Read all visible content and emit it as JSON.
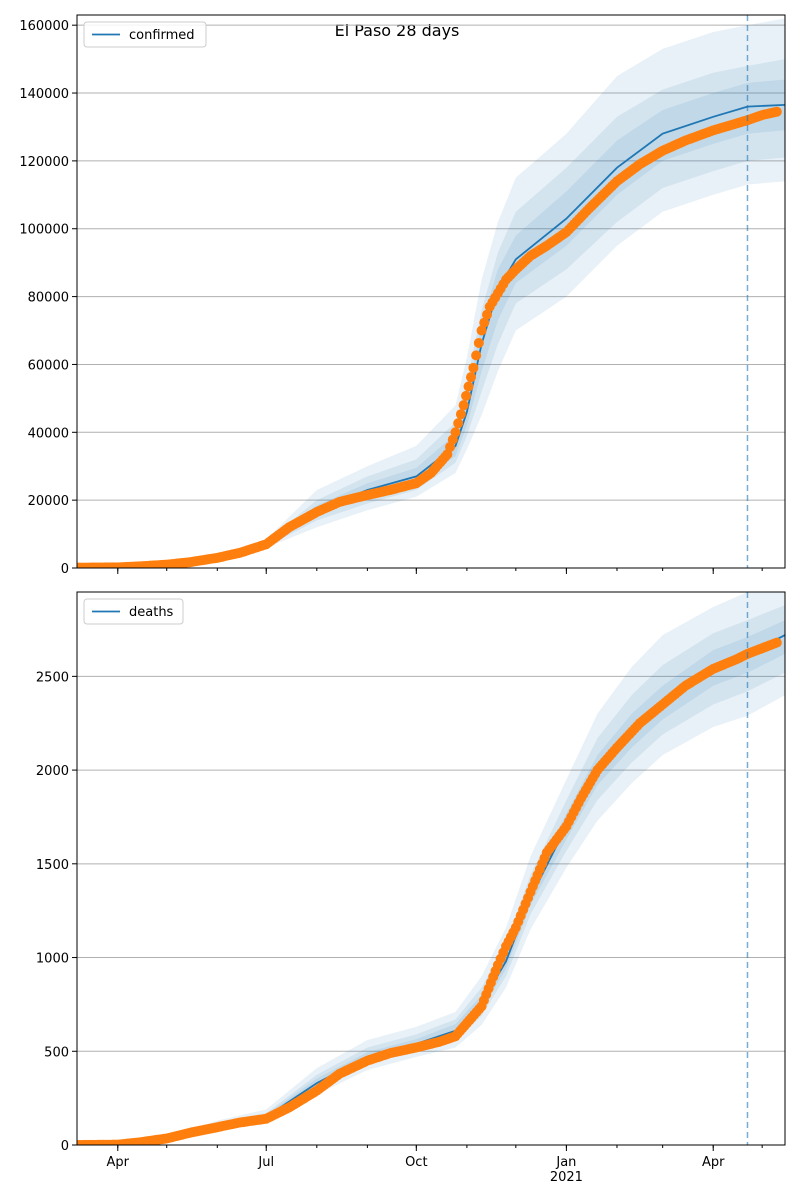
{
  "figure": {
    "title": "El Paso 28 days"
  },
  "colors": {
    "model_line": "#1f77b4",
    "band_fill": "#1f77b4",
    "observed": "#ff7f0e",
    "grid": "#b0b0b0",
    "vline": "#1f77b4"
  },
  "chart_data": [
    {
      "type": "line",
      "id": "confirmed",
      "legend": {
        "entries": [
          "confirmed"
        ],
        "placement": "top-left"
      },
      "x_axis": {
        "type": "date",
        "range": [
          "2020-03-07",
          "2021-05-15"
        ],
        "ticks": [
          {
            "date": "2020-04-01",
            "label": "Apr"
          },
          {
            "date": "2020-07-01",
            "label": "Jul"
          },
          {
            "date": "2020-10-01",
            "label": "Oct"
          },
          {
            "date": "2021-01-01",
            "label": "Jan"
          },
          {
            "date": "2021-04-01",
            "label": "Apr"
          }
        ],
        "year_label": "2021"
      },
      "y_axis": {
        "range": [
          0,
          163000
        ],
        "ticks": [
          0,
          20000,
          40000,
          60000,
          80000,
          100000,
          120000,
          140000,
          160000
        ],
        "grid": true
      },
      "forecast_start": "2021-04-22",
      "model": {
        "dates": [
          "2020-03-07",
          "2020-04-01",
          "2020-05-01",
          "2020-06-01",
          "2020-07-01",
          "2020-08-01",
          "2020-09-01",
          "2020-10-01",
          "2020-10-25",
          "2020-11-01",
          "2020-11-10",
          "2020-11-20",
          "2020-12-01",
          "2021-01-01",
          "2021-02-01",
          "2021-03-01",
          "2021-04-01",
          "2021-04-22",
          "2021-05-15"
        ],
        "median": [
          0,
          200,
          1000,
          3000,
          7000,
          17000,
          23000,
          27000,
          36000,
          46000,
          66000,
          82000,
          91000,
          103000,
          118000,
          128000,
          133000,
          136000,
          136500
        ],
        "bands": [
          {
            "lower": [
              0,
              200,
              900,
              2700,
              6000,
              12000,
              17000,
              21000,
              28000,
              35000,
              45000,
              58000,
              70000,
              80000,
              95000,
              105000,
              110000,
              113000,
              114000
            ],
            "upper": [
              0,
              250,
              1200,
              3500,
              8500,
              23000,
              30000,
              36000,
              48000,
              62000,
              85000,
              102000,
              115000,
              128000,
              145000,
              153000,
              158000,
              160000,
              162000
            ]
          },
          {
            "lower": [
              0,
              200,
              950,
              2800,
              6300,
              14000,
              19000,
              23000,
              31000,
              39000,
              52000,
              66000,
              78000,
              88000,
              102000,
              112000,
              117000,
              120000,
              121000
            ],
            "upper": [
              0,
              230,
              1100,
              3300,
              7800,
              20000,
              27000,
              32000,
              43000,
              55000,
              76000,
              93000,
              105000,
              118000,
              133000,
              141000,
              146000,
              148000,
              150000
            ]
          },
          {
            "lower": [
              0,
              200,
              970,
              2900,
              6600,
              15500,
              21000,
              25000,
              33000,
              42000,
              58000,
              73000,
              84000,
              95000,
              110000,
              120000,
              125000,
              128000,
              129000
            ],
            "upper": [
              0,
              220,
              1050,
              3150,
              7400,
              18500,
              25000,
              29500,
              39500,
              50000,
              72000,
              88000,
              98000,
              111000,
              126000,
              135000,
              140000,
              143000,
              144000
            ]
          }
        ]
      },
      "observed": {
        "dates": [
          "2020-03-07",
          "2020-03-20",
          "2020-04-01",
          "2020-04-15",
          "2020-05-01",
          "2020-05-15",
          "2020-06-01",
          "2020-06-15",
          "2020-07-01",
          "2020-07-15",
          "2020-08-01",
          "2020-08-15",
          "2020-09-01",
          "2020-09-15",
          "2020-10-01",
          "2020-10-10",
          "2020-10-20",
          "2020-10-25",
          "2020-10-30",
          "2020-11-05",
          "2020-11-10",
          "2020-11-15",
          "2020-11-20",
          "2020-11-25",
          "2020-12-01",
          "2020-12-10",
          "2020-12-20",
          "2021-01-01",
          "2021-01-15",
          "2021-02-01",
          "2021-02-15",
          "2021-03-01",
          "2021-03-15",
          "2021-04-01",
          "2021-04-15",
          "2021-04-22",
          "2021-05-01",
          "2021-05-10"
        ],
        "values": [
          100,
          150,
          200,
          500,
          1000,
          1700,
          3000,
          4500,
          7000,
          12000,
          16500,
          19500,
          21500,
          23000,
          25000,
          28000,
          33500,
          40000,
          48000,
          59000,
          70000,
          77000,
          81000,
          85000,
          88000,
          92000,
          95000,
          99000,
          106000,
          114000,
          119000,
          123000,
          126000,
          129000,
          131000,
          132000,
          133500,
          134500
        ]
      }
    },
    {
      "type": "line",
      "id": "deaths",
      "legend": {
        "entries": [
          "deaths"
        ],
        "placement": "top-left"
      },
      "x_axis": {
        "type": "date",
        "range": [
          "2020-03-07",
          "2021-05-15"
        ],
        "ticks": [
          {
            "date": "2020-04-01",
            "label": "Apr"
          },
          {
            "date": "2020-07-01",
            "label": "Jul"
          },
          {
            "date": "2020-10-01",
            "label": "Oct"
          },
          {
            "date": "2021-01-01",
            "label": "Jan"
          },
          {
            "date": "2021-04-01",
            "label": "Apr"
          }
        ],
        "year_label": "2021"
      },
      "y_axis": {
        "range": [
          0,
          2950
        ],
        "ticks": [
          0,
          500,
          1000,
          1500,
          2000,
          2500
        ],
        "grid": true
      },
      "forecast_start": "2021-04-22",
      "model": {
        "dates": [
          "2020-03-07",
          "2020-04-01",
          "2020-05-01",
          "2020-06-01",
          "2020-07-01",
          "2020-08-01",
          "2020-09-01",
          "2020-10-01",
          "2020-10-25",
          "2020-11-10",
          "2020-11-25",
          "2020-12-10",
          "2021-01-01",
          "2021-01-20",
          "2021-02-10",
          "2021-03-01",
          "2021-04-01",
          "2021-04-22",
          "2021-05-15"
        ],
        "median": [
          0,
          5,
          30,
          100,
          150,
          330,
          470,
          540,
          610,
          760,
          980,
          1320,
          1700,
          2000,
          2200,
          2350,
          2550,
          2620,
          2720
        ],
        "bands": [
          {
            "lower": [
              0,
              3,
              20,
              80,
              120,
              270,
              400,
              470,
              520,
              640,
              840,
              1150,
              1480,
              1730,
              1930,
              2080,
              2230,
              2290,
              2400
            ],
            "upper": [
              0,
              8,
              45,
              130,
              190,
              410,
              560,
              630,
              710,
              900,
              1160,
              1540,
              1950,
              2300,
              2550,
              2720,
              2870,
              2950,
              2950
            ]
          },
          {
            "lower": [
              0,
              4,
              25,
              88,
              133,
              295,
              430,
              500,
              555,
              690,
              900,
              1230,
              1570,
              1840,
              2040,
              2190,
              2350,
              2420,
              2520
            ],
            "upper": [
              0,
              7,
              38,
              118,
              170,
              375,
              520,
              590,
              670,
              840,
              1080,
              1440,
              1840,
              2170,
              2400,
              2560,
              2730,
              2800,
              2880
            ]
          },
          {
            "lower": [
              0,
              4,
              27,
              93,
              140,
              310,
              450,
              520,
              580,
              720,
              940,
              1280,
              1630,
              1920,
              2120,
              2270,
              2450,
              2520,
              2620
            ],
            "upper": [
              0,
              6,
              34,
              110,
              162,
              355,
              495,
              565,
              645,
              800,
              1030,
              1380,
              1770,
              2080,
              2300,
              2450,
              2640,
              2710,
              2800
            ]
          }
        ]
      },
      "observed": {
        "dates": [
          "2020-03-07",
          "2020-04-01",
          "2020-04-15",
          "2020-05-01",
          "2020-05-15",
          "2020-06-01",
          "2020-06-15",
          "2020-07-01",
          "2020-07-15",
          "2020-08-01",
          "2020-08-15",
          "2020-09-01",
          "2020-09-15",
          "2020-10-01",
          "2020-10-15",
          "2020-10-25",
          "2020-11-01",
          "2020-11-10",
          "2020-11-20",
          "2020-11-25",
          "2020-12-01",
          "2020-12-10",
          "2020-12-20",
          "2021-01-01",
          "2021-01-10",
          "2021-01-20",
          "2021-02-01",
          "2021-02-15",
          "2021-03-01",
          "2021-03-15",
          "2021-04-01",
          "2021-04-15",
          "2021-04-22",
          "2021-05-01",
          "2021-05-10"
        ],
        "values": [
          0,
          2,
          15,
          35,
          65,
          95,
          120,
          140,
          200,
          290,
          380,
          450,
          490,
          520,
          550,
          580,
          650,
          740,
          960,
          1060,
          1160,
          1350,
          1560,
          1700,
          1850,
          2000,
          2120,
          2250,
          2350,
          2450,
          2540,
          2590,
          2620,
          2650,
          2680
        ]
      }
    }
  ]
}
